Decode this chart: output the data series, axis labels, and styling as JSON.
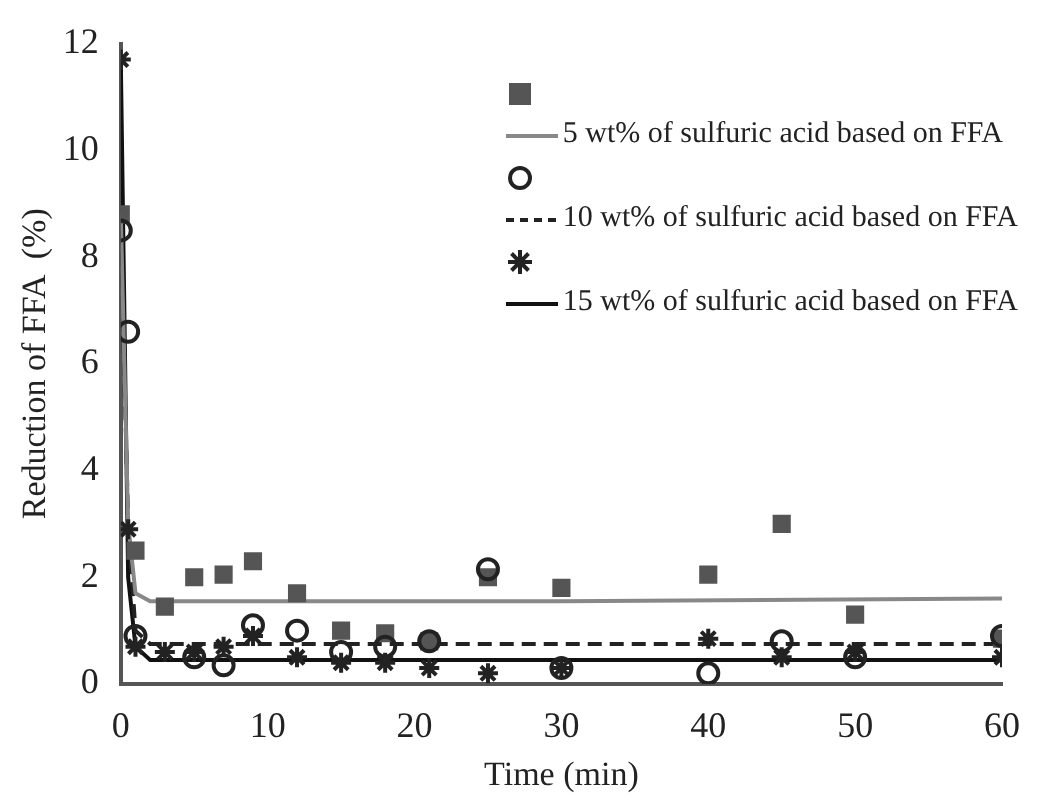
{
  "chart_data": {
    "type": "scatter",
    "xlabel": "Time (min)",
    "ylabel": "Reduction of FFA  (%)",
    "xlim": [
      0,
      60
    ],
    "ylim": [
      0,
      12
    ],
    "xticks": [
      0,
      10,
      20,
      30,
      40,
      50,
      60
    ],
    "yticks": [
      0,
      2,
      4,
      6,
      8,
      10,
      12
    ],
    "grid": false,
    "legend": "top right",
    "series": [
      {
        "marker": "square",
        "color": "#555555",
        "x": [
          0,
          1,
          3,
          5,
          7,
          9,
          12,
          15,
          18,
          21,
          25,
          30,
          40,
          45,
          50,
          60
        ],
        "values": [
          8.8,
          2.5,
          1.45,
          2.0,
          2.05,
          2.3,
          1.7,
          1.0,
          0.95,
          0.8,
          2.0,
          1.8,
          2.05,
          3.0,
          1.3,
          0.85
        ]
      },
      {
        "type": "line",
        "name": "5 wt% of sulfuric acid based on FFA",
        "line_style": "solid",
        "color": "#888888",
        "x": [
          0,
          0.5,
          1,
          2,
          30,
          60
        ],
        "values": [
          8.8,
          3.0,
          1.7,
          1.55,
          1.55,
          1.6
        ]
      },
      {
        "marker": "circle",
        "color": "#222222",
        "x": [
          0,
          0.5,
          1,
          5,
          7,
          9,
          12,
          15,
          18,
          21,
          25,
          30,
          40,
          45,
          50,
          60
        ],
        "values": [
          8.5,
          6.6,
          0.9,
          0.5,
          0.35,
          1.1,
          1.0,
          0.6,
          0.7,
          0.8,
          2.15,
          0.3,
          0.2,
          0.8,
          0.5,
          0.9
        ]
      },
      {
        "type": "line",
        "name": "10 wt% of sulfuric acid based on FFA",
        "line_style": "dashed",
        "color": "#222222",
        "x": [
          0,
          0.5,
          1,
          2,
          60
        ],
        "values": [
          8.5,
          3.0,
          1.0,
          0.75,
          0.75
        ]
      },
      {
        "marker": "cross",
        "color": "#222222",
        "x": [
          0,
          0.5,
          1,
          3,
          5,
          7,
          9,
          12,
          15,
          18,
          21,
          25,
          30,
          40,
          45,
          50,
          60
        ],
        "values": [
          11.7,
          2.9,
          0.7,
          0.6,
          0.6,
          0.7,
          0.9,
          0.5,
          0.4,
          0.4,
          0.3,
          0.2,
          0.3,
          0.85,
          0.5,
          0.6,
          0.5
        ]
      },
      {
        "type": "line",
        "name": "15 wt% of sulfuric acid based on FFA",
        "line_style": "solid",
        "color": "#111111",
        "x": [
          0,
          0.5,
          1,
          2,
          60
        ],
        "values": [
          11.7,
          2.0,
          0.7,
          0.45,
          0.45
        ]
      }
    ]
  }
}
